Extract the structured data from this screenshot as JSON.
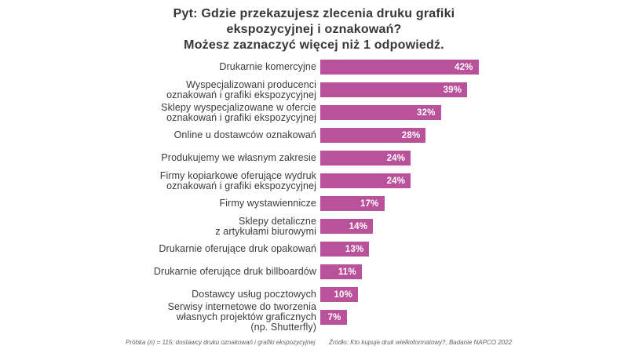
{
  "title": {
    "lines": [
      "Pyt: Gdzie przekazujesz zlecenia druku grafiki",
      "ekspozycyjnej i oznakowań?",
      "Możesz zaznaczyć więcej niż 1 odpowiedź."
    ]
  },
  "chart_data": {
    "type": "bar",
    "orientation": "horizontal",
    "title": "Pyt: Gdzie przekazujesz zlecenia druku grafiki ekspozycyjnej i oznakowań? Możesz zaznaczyć więcej niż 1 odpowiedź.",
    "unit": "%",
    "xlim": [
      0,
      42
    ],
    "grid": false,
    "legend": false,
    "bar_color": "#ba529b",
    "value_label_position": "inside-right",
    "value_label_color": "#ffffff",
    "categories": [
      "Drukarnie komercyjne",
      "Wyspecjalizowani producenci\noznakowań i grafiki ekspozycyjnej",
      "Sklepy wyspecjalizowane w ofercie\noznakowań i grafiki ekspozycyjnej",
      "Online u dostawców oznakowań",
      "Produkujemy we własnym zakresie",
      "Firmy kopiarkowe oferujące wydruk\noznakowań i grafiki ekspozycyjnej",
      "Firmy wystawiennicze",
      "Sklepy detaliczne\nz artykułami biurowymi",
      "Drukarnie oferujące druk opakowań",
      "Drukarnie oferujące druk billboardów",
      "Dostawcy usług pocztowych",
      "Serwisy internetowe do tworzenia\nwłasnych projektów graficznych\n(np. Shutterfly)"
    ],
    "values": [
      42,
      39,
      32,
      28,
      24,
      24,
      17,
      14,
      13,
      11,
      10,
      7
    ],
    "value_labels": [
      "42%",
      "39%",
      "32%",
      "28%",
      "24%",
      "24%",
      "17%",
      "14%",
      "13%",
      "11%",
      "10%",
      "7%"
    ]
  },
  "footnotes": {
    "left": "Próbka (n) = 115; dostawcy druku oznakowań i grafiki ekspozycyjnej",
    "right": "Źródło: Kto kupuje druk wielkoformatowy?, Badanie NAPCO 2022"
  }
}
